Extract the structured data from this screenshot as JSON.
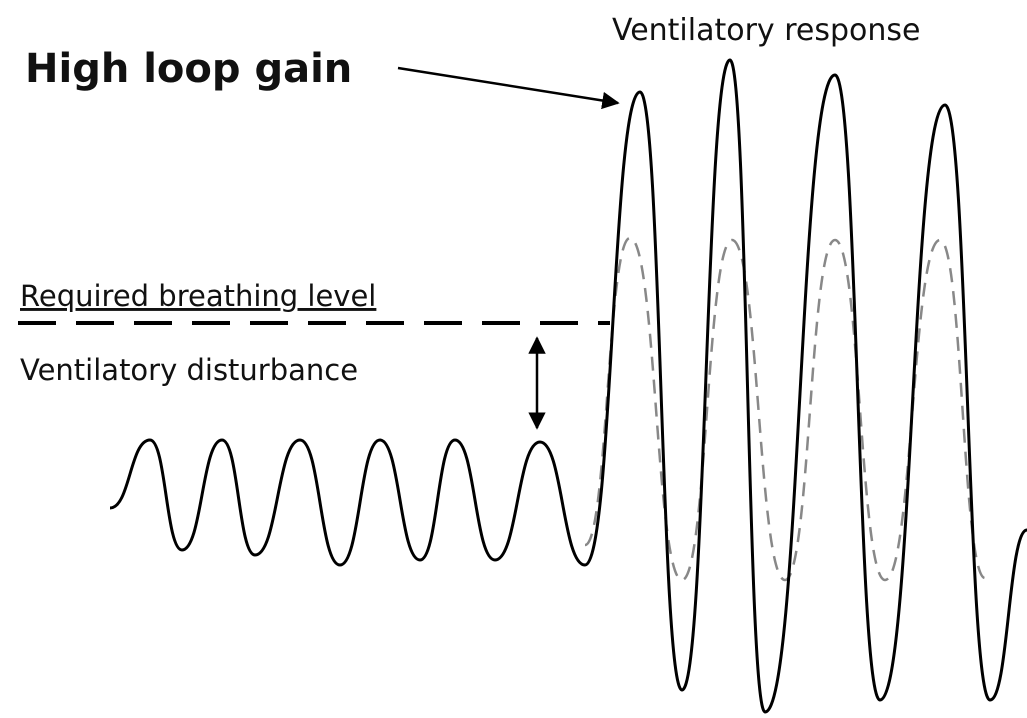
{
  "labels": {
    "response": "Ventilatory response",
    "gain": "High loop gain",
    "required": "Required breathing level",
    "disturbance": "Ventilatory disturbance"
  }
}
